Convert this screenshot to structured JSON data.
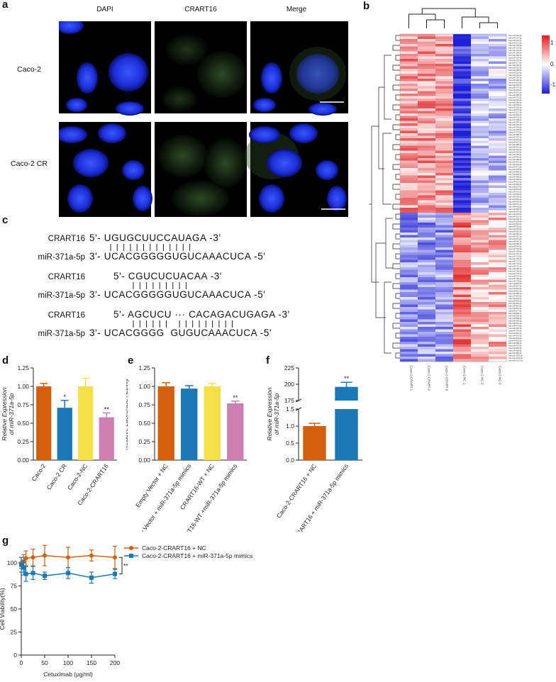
{
  "panel_labels": {
    "a": "a",
    "b": "b",
    "c": "c",
    "d": "d",
    "e": "e",
    "f": "f",
    "g": "g"
  },
  "panel_a": {
    "columns": [
      "DAPI",
      "CRART16",
      "Merge"
    ],
    "rows": [
      "Caco-2",
      "Caco-2 CR"
    ]
  },
  "panel_b": {
    "legend_ticks": [
      "1",
      "0",
      "-1"
    ],
    "columns": [
      "Caco-2-CRART-1",
      "Caco-2-CRART-2",
      "Caco-2-CRART-3",
      "Caco-2-NC-1",
      "Caco-2-NC-2",
      "Caco-2-NC-3"
    ],
    "colors": {
      "high": "#e41a1c",
      "mid": "#ffffff",
      "low": "#1f1fd8"
    }
  },
  "panel_c": {
    "pairs": [
      {
        "name1": "CRART16",
        "seq1": "5'- UGUGCUUCCAUAGA -3'",
        "name2": "miR-371a-5p",
        "seq2": "3'- UCACGGGGGUGUCAAACUCA -5'",
        "bonds": [
          0,
          1,
          2,
          3,
          4,
          5,
          6,
          7,
          8,
          9,
          10,
          11,
          12
        ]
      },
      {
        "name1": "CRART16",
        "seq1": "5'- CGUCUCUACAA -3'",
        "name2": "miR-371a-5p",
        "seq2": "3'- UCACGGGGGUGUCAAACUCA -5'",
        "bonds": [
          0,
          1,
          2,
          3,
          4,
          5,
          6,
          7,
          8
        ]
      },
      {
        "name1": "CRART16",
        "seq1": "5'- AGCUCU ··· CACAGACUGAGA -3'",
        "name2": "miR-371a-5p",
        "seq2": "3'- UCACGGGG  GUGUCAAACUCA -5'",
        "bonds": [
          0,
          1,
          2,
          3,
          4,
          5,
          7,
          8,
          9,
          10,
          11,
          12,
          13,
          14,
          15
        ]
      }
    ]
  },
  "chart_data": [
    {
      "panel": "d",
      "type": "bar",
      "ylabel": "Relative Expression of miR-371a-5p",
      "ylim": [
        0,
        1.25
      ],
      "yticks": [
        "0.00",
        "0.25",
        "0.50",
        "0.75",
        "1.00",
        "1.25"
      ],
      "categories": [
        "Caco-2",
        "Caco-2 CR",
        "Caco-2-NC",
        "Caco-2-CRART16"
      ],
      "values": [
        1.0,
        0.71,
        1.0,
        0.58
      ],
      "errors": [
        0.04,
        0.1,
        0.11,
        0.06
      ],
      "colors": [
        "#d35f0c",
        "#1b77b5",
        "#f3e04a",
        "#cc7fb0"
      ],
      "sig": [
        "",
        "*",
        "",
        "**"
      ]
    },
    {
      "panel": "e",
      "type": "bar",
      "ylabel": "Relative Luciferase Activity",
      "ylim": [
        0,
        1.25
      ],
      "yticks": [
        "0.00",
        "0.25",
        "0.50",
        "0.75",
        "1.00",
        "1.25"
      ],
      "categories": [
        "Empty Vector + NC",
        "Empty Vector + miR-371a-5p mimics",
        "CRART16-WT + NC",
        "CRART16-WT +miR-371a-5p mimics"
      ],
      "values": [
        1.0,
        0.97,
        1.0,
        0.77
      ],
      "errors": [
        0.05,
        0.04,
        0.04,
        0.03
      ],
      "colors": [
        "#d35f0c",
        "#1b77b5",
        "#f3e04a",
        "#cc7fb0"
      ],
      "sig": [
        "",
        "",
        "",
        "**"
      ]
    },
    {
      "panel": "f",
      "type": "bar",
      "ylabel": "Relative Expression of miR-371a-5p",
      "broken_axis": true,
      "yticks_lower": [
        "0.0",
        "0.5",
        "1.0",
        "1.5"
      ],
      "yticks_upper": [
        "175",
        "200",
        "225"
      ],
      "categories": [
        "Caco-2-CRART16 + NC",
        "Caco-2-CRART16 + miR-371a-5p mimics"
      ],
      "values": [
        1.0,
        196
      ],
      "errors": [
        0.08,
        7
      ],
      "colors": [
        "#d35f0c",
        "#1b77b5"
      ],
      "sig": [
        "",
        "**"
      ]
    },
    {
      "panel": "g",
      "type": "line",
      "xlabel": "Cetuximab  (μg/ml)",
      "ylabel": "Cell Viability(%)",
      "xlim": [
        0,
        200
      ],
      "ylim": [
        0,
        100
      ],
      "xticks": [
        "0",
        "50",
        "100",
        "150",
        "200"
      ],
      "yticks": [
        "0",
        "25",
        "50",
        "75",
        "100"
      ],
      "x": [
        0,
        5,
        10,
        25,
        50,
        100,
        150,
        200
      ],
      "series": [
        {
          "name": "Caco-2-CRART16 + NC",
          "values": [
            100,
            101,
            105,
            106,
            108,
            106,
            108,
            106
          ],
          "errors": [
            6,
            8,
            8,
            9,
            11,
            11,
            6,
            12
          ],
          "color": "#d35f0c"
        },
        {
          "name": "Caco-2-CRART16 + miR-371a-5p mimics",
          "values": [
            98,
            95,
            88,
            89,
            86,
            89,
            84,
            88
          ],
          "errors": [
            8,
            8,
            8,
            7,
            4,
            6,
            6,
            5
          ],
          "color": "#1b77b5"
        }
      ],
      "sig": "**"
    }
  ]
}
